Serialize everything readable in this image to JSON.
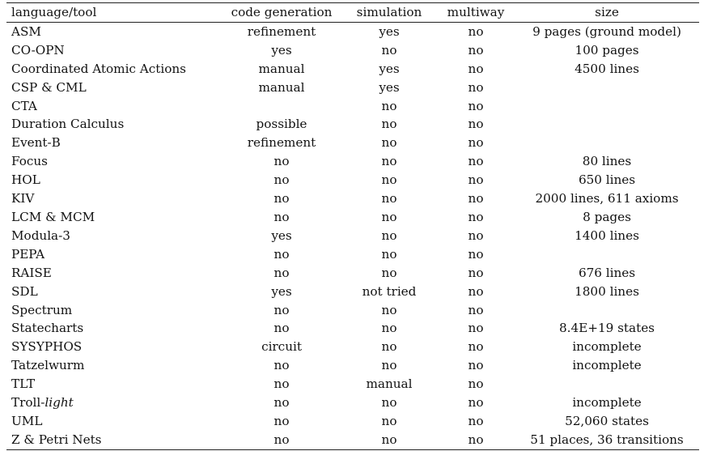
{
  "table": {
    "headers": [
      "language/tool",
      "code generation",
      "simulation",
      "multiway",
      "size"
    ],
    "rows": [
      {
        "tool": "ASM",
        "code_generation": "refinement",
        "simulation": "yes",
        "multiway": "no",
        "size": "9 pages (ground model)"
      },
      {
        "tool": "CO-OPN",
        "code_generation": "yes",
        "simulation": "no",
        "multiway": "no",
        "size": "100 pages"
      },
      {
        "tool": "Coordinated Atomic Actions",
        "code_generation": "manual",
        "simulation": "yes",
        "multiway": "no",
        "size": "4500 lines"
      },
      {
        "tool": "CSP & CML",
        "code_generation": "manual",
        "simulation": "yes",
        "multiway": "no",
        "size": ""
      },
      {
        "tool": "CTA",
        "code_generation": "",
        "simulation": "no",
        "multiway": "no",
        "size": ""
      },
      {
        "tool": "Duration Calculus",
        "code_generation": "possible",
        "simulation": "no",
        "multiway": "no",
        "size": ""
      },
      {
        "tool": "Event-B",
        "code_generation": "refinement",
        "simulation": "no",
        "multiway": "no",
        "size": ""
      },
      {
        "tool": "Focus",
        "code_generation": "no",
        "simulation": "no",
        "multiway": "no",
        "size": "80 lines"
      },
      {
        "tool": "HOL",
        "code_generation": "no",
        "simulation": "no",
        "multiway": "no",
        "size": "650 lines"
      },
      {
        "tool": "KIV",
        "code_generation": "no",
        "simulation": "no",
        "multiway": "no",
        "size": "2000 lines, 611 axioms"
      },
      {
        "tool": "LCM & MCM",
        "code_generation": "no",
        "simulation": "no",
        "multiway": "no",
        "size": "8 pages"
      },
      {
        "tool": "Modula-3",
        "code_generation": "yes",
        "simulation": "no",
        "multiway": "no",
        "size": "1400 lines"
      },
      {
        "tool": "PEPA",
        "code_generation": "no",
        "simulation": "no",
        "multiway": "no",
        "size": ""
      },
      {
        "tool": "RAISE",
        "code_generation": "no",
        "simulation": "no",
        "multiway": "no",
        "size": "676 lines"
      },
      {
        "tool": "SDL",
        "code_generation": "yes",
        "simulation": "not tried",
        "multiway": "no",
        "size": "1800 lines"
      },
      {
        "tool": "Spectrum",
        "code_generation": "no",
        "simulation": "no",
        "multiway": "no",
        "size": ""
      },
      {
        "tool": "Statecharts",
        "code_generation": "no",
        "simulation": "no",
        "multiway": "no",
        "size": "8.4E+19 states"
      },
      {
        "tool": "SYSYPHOS",
        "code_generation": "circuit",
        "simulation": "no",
        "multiway": "no",
        "size": "incomplete"
      },
      {
        "tool": "Tatzelwurm",
        "code_generation": "no",
        "simulation": "no",
        "multiway": "no",
        "size": "incomplete"
      },
      {
        "tool": "TLT",
        "code_generation": "no",
        "simulation": "manual",
        "multiway": "no",
        "size": ""
      },
      {
        "tool": "Troll-light",
        "tool_prefix": "Troll-",
        "tool_italic": "light",
        "code_generation": "no",
        "simulation": "no",
        "multiway": "no",
        "size": "incomplete"
      },
      {
        "tool": "UML",
        "code_generation": "no",
        "simulation": "no",
        "multiway": "no",
        "size": "52,060 states"
      },
      {
        "tool": "Z & Petri Nets",
        "code_generation": "no",
        "simulation": "no",
        "multiway": "no",
        "size": "51 places, 36 transitions"
      }
    ]
  }
}
